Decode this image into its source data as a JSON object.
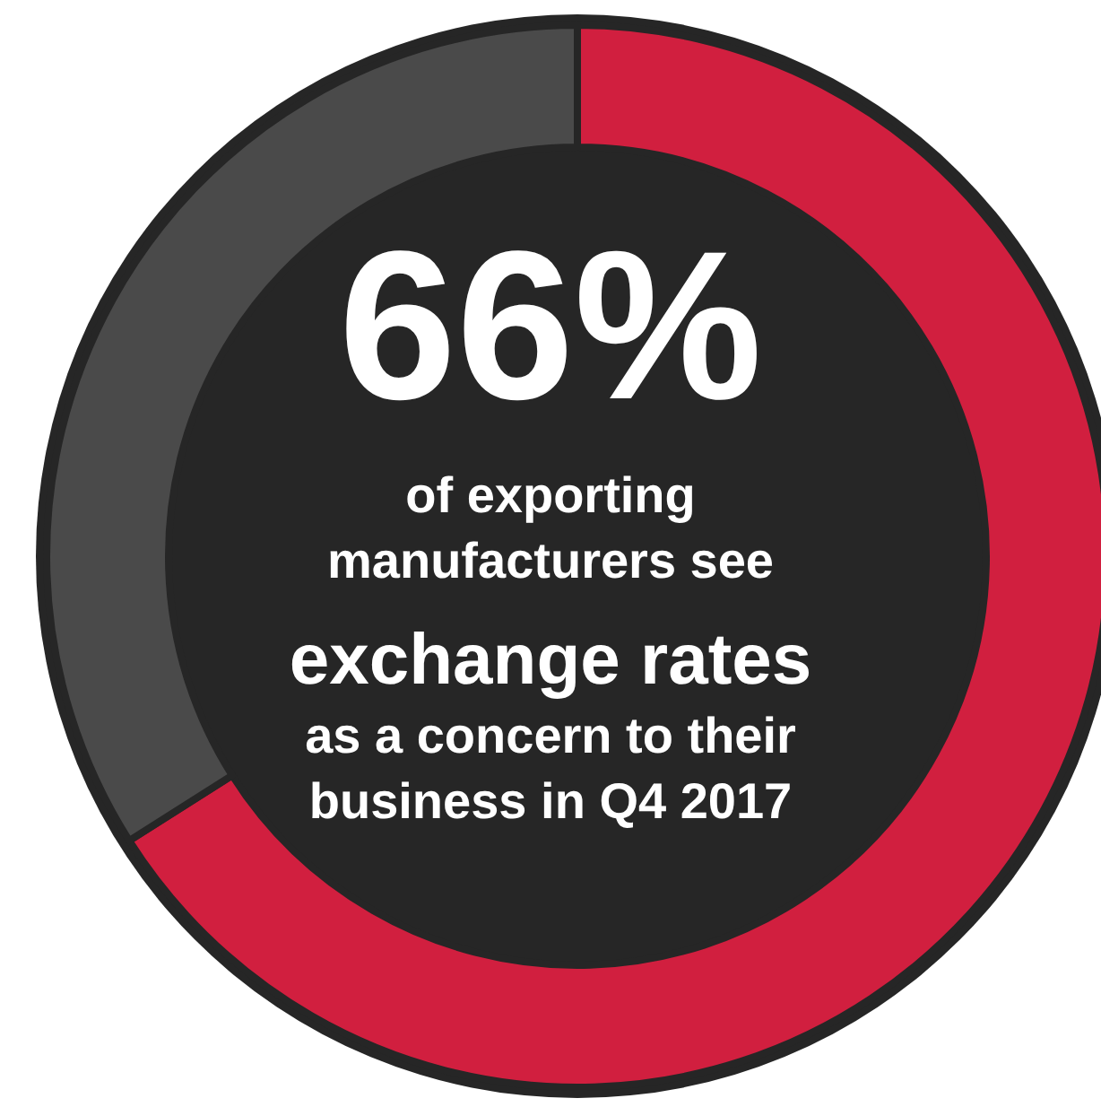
{
  "chart_data": {
    "type": "donut",
    "title": "66%",
    "categories": [
      null,
      null
    ],
    "values": [
      66,
      34
    ],
    "colors": [
      "#d11f3f",
      "#4a4a4a"
    ],
    "annotations": [
      "of exporting\nmanufacturers see",
      "exchange rates",
      "as a concern to their\nbusiness in Q4 2017"
    ]
  }
}
